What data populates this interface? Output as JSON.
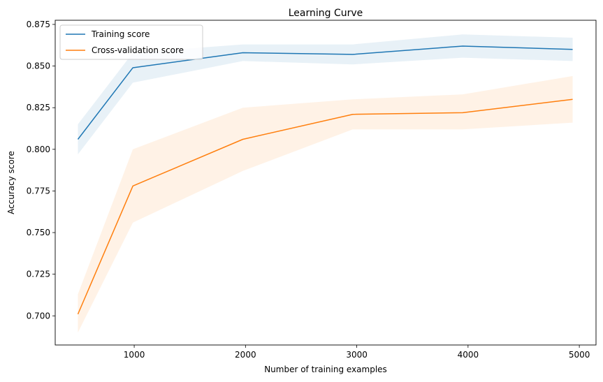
{
  "chart_data": {
    "type": "line",
    "title": "Learning Curve",
    "xlabel": "Number of training examples",
    "ylabel": "Accuracy score",
    "xlim": [
      290,
      5150
    ],
    "ylim": [
      0.6825,
      0.8775
    ],
    "xticks": [
      1000,
      2000,
      3000,
      4000,
      5000
    ],
    "xtick_labels": [
      "1000",
      "2000",
      "3000",
      "4000",
      "5000"
    ],
    "yticks": [
      0.7,
      0.725,
      0.75,
      0.775,
      0.8,
      0.825,
      0.85,
      0.875
    ],
    "ytick_labels": [
      "0.700",
      "0.725",
      "0.750",
      "0.775",
      "0.800",
      "0.825",
      "0.850",
      "0.875"
    ],
    "grid": false,
    "legend_position": "top-left",
    "x": [
      494,
      988,
      1976,
      2964,
      3952,
      4940
    ],
    "series": [
      {
        "name": "Training score",
        "color": "#1f77b4",
        "values": [
          0.806,
          0.849,
          0.858,
          0.857,
          0.862,
          0.86
        ],
        "band_lower": [
          0.797,
          0.84,
          0.853,
          0.851,
          0.855,
          0.853
        ],
        "band_upper": [
          0.815,
          0.858,
          0.863,
          0.863,
          0.869,
          0.867
        ]
      },
      {
        "name": "Cross-validation score",
        "color": "#ff7f0e",
        "values": [
          0.701,
          0.778,
          0.806,
          0.821,
          0.822,
          0.83
        ],
        "band_lower": [
          0.69,
          0.756,
          0.787,
          0.812,
          0.812,
          0.816
        ],
        "band_upper": [
          0.713,
          0.8,
          0.825,
          0.83,
          0.833,
          0.844
        ]
      }
    ]
  }
}
